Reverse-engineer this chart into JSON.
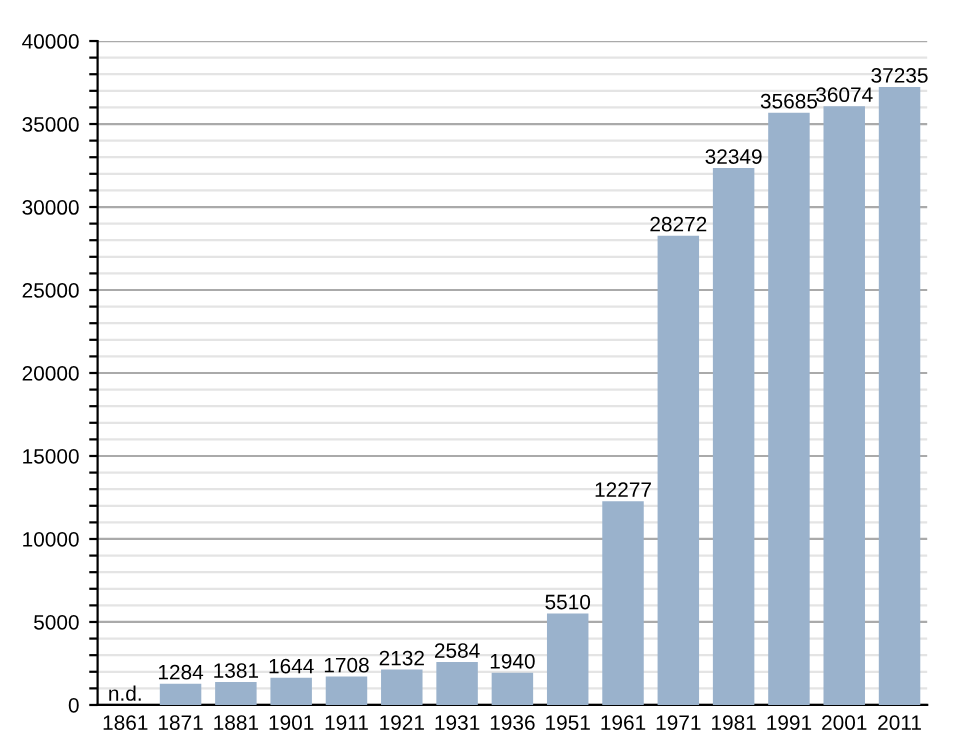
{
  "chart_data": {
    "type": "bar",
    "categories": [
      "1861",
      "1871",
      "1881",
      "1901",
      "1911",
      "1921",
      "1931",
      "1936",
      "1951",
      "1961",
      "1971",
      "1981",
      "1991",
      "2001",
      "2011"
    ],
    "values": [
      null,
      1284,
      1381,
      1644,
      1708,
      2132,
      2584,
      1940,
      5510,
      12277,
      28272,
      32349,
      35685,
      36074,
      37235
    ],
    "value_labels": [
      "n.d.",
      "1284",
      "1381",
      "1644",
      "1708",
      "2132",
      "2584",
      "1940",
      "5510",
      "12277",
      "28272",
      "32349",
      "35685",
      "36074",
      "37235"
    ],
    "color": "#9ab2cc",
    "ylim": [
      0,
      40000
    ],
    "yticks": [
      0,
      {
        "value": 1000,
        "label": null
      },
      {
        "value": 2000,
        "label": null
      },
      {
        "value": 3000,
        "label": null
      },
      {
        "value": 4000,
        "label": null
      },
      5000,
      {
        "value": 6000,
        "label": null
      },
      {
        "value": 7000,
        "label": null
      },
      {
        "value": 8000,
        "label": null
      },
      {
        "value": 9000,
        "label": null
      },
      10000,
      {
        "value": 11000,
        "label": null
      },
      {
        "value": 12000,
        "label": null
      },
      {
        "value": 13000,
        "label": null
      },
      {
        "value": 14000,
        "label": null
      },
      15000,
      {
        "value": 16000,
        "label": null
      },
      {
        "value": 17000,
        "label": null
      },
      {
        "value": 18000,
        "label": null
      },
      {
        "value": 19000,
        "label": null
      },
      20000,
      {
        "value": 21000,
        "label": null
      },
      {
        "value": 22000,
        "label": null
      },
      {
        "value": 23000,
        "label": null
      },
      {
        "value": 24000,
        "label": null
      },
      25000,
      {
        "value": 26000,
        "label": null
      },
      {
        "value": 27000,
        "label": null
      },
      {
        "value": 28000,
        "label": null
      },
      {
        "value": 29000,
        "label": null
      },
      30000,
      {
        "value": 31000,
        "label": null
      },
      {
        "value": 32000,
        "label": null
      },
      {
        "value": 33000,
        "label": null
      },
      {
        "value": 34000,
        "label": null
      },
      35000,
      {
        "value": 36000,
        "label": null
      },
      {
        "value": 37000,
        "label": null
      },
      {
        "value": 38000,
        "label": null
      },
      {
        "value": 39000,
        "label": null
      },
      40000
    ],
    "grid": "y"
  }
}
